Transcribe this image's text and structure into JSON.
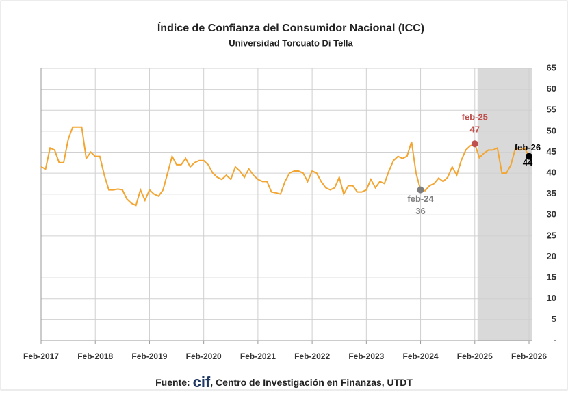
{
  "chart_data": {
    "type": "line",
    "title": "Índice de Confianza del Consumidor Nacional (ICC)",
    "subtitle": "Universidad Torcuato Di Tella",
    "categories": [
      "Feb-2017",
      null,
      null,
      null,
      null,
      null,
      null,
      null,
      null,
      null,
      null,
      null,
      "Feb-2018",
      null,
      null,
      null,
      null,
      null,
      null,
      null,
      null,
      null,
      null,
      null,
      "Feb-2019",
      null,
      null,
      null,
      null,
      null,
      null,
      null,
      null,
      null,
      null,
      null,
      "Feb-2020",
      null,
      null,
      null,
      null,
      null,
      null,
      null,
      null,
      null,
      null,
      null,
      "Feb-2021",
      null,
      null,
      null,
      null,
      null,
      null,
      null,
      null,
      null,
      null,
      null,
      "Feb-2022",
      null,
      null,
      null,
      null,
      null,
      null,
      null,
      null,
      null,
      null,
      null,
      "Feb-2023",
      null,
      null,
      null,
      null,
      null,
      null,
      null,
      null,
      null,
      null,
      null,
      "Feb-2024",
      null,
      null,
      null,
      null,
      null,
      null,
      null,
      null,
      null,
      null,
      null,
      "Feb-2025",
      null,
      null,
      null,
      null,
      null,
      null,
      null,
      null,
      null,
      null,
      null,
      "Feb-2026"
    ],
    "series": [
      {
        "name": "ICC",
        "color": "#f2a531",
        "values": [
          41.5,
          41,
          46,
          45.5,
          42.5,
          42.5,
          48,
          51,
          51,
          51,
          43.5,
          45,
          44,
          44,
          39.5,
          36,
          36,
          36.2,
          36,
          33.8,
          32.8,
          32.3,
          36,
          33.5,
          36,
          35,
          34.5,
          36,
          40,
          44,
          42,
          42,
          43.5,
          41.5,
          42.5,
          43,
          43,
          42,
          40,
          39,
          38.5,
          39.5,
          38.5,
          41.5,
          40.5,
          39,
          41,
          39.5,
          38.5,
          38,
          38,
          35.5,
          35.3,
          35,
          38,
          40,
          40.5,
          40.5,
          40,
          38,
          40.5,
          40,
          38,
          36.5,
          36,
          36.5,
          39,
          35,
          37,
          37,
          35.5,
          35.5,
          36,
          38.5,
          36.5,
          38,
          37.5,
          40.5,
          43,
          44,
          43.5,
          44,
          47.5,
          40,
          36,
          35.8,
          37,
          37.5,
          38.8,
          38,
          39,
          41.5,
          39.5,
          43,
          45.5,
          46.5,
          47,
          43.7,
          44.7,
          45.5,
          45.5,
          46,
          40,
          40,
          42,
          46,
          45.5,
          46,
          44
        ]
      }
    ],
    "ylim": [
      0,
      65
    ],
    "yticks": [
      {
        "value": 0,
        "label": "-"
      },
      5,
      10,
      15,
      20,
      25,
      30,
      35,
      40,
      45,
      50,
      55,
      60,
      65
    ],
    "grid": true,
    "annotations": [
      {
        "label": "feb-24",
        "value": 36,
        "color": "#7f7f7f"
      },
      {
        "label": "feb-25",
        "value": 47,
        "color": "#c0504d"
      },
      {
        "label": "feb-26",
        "value": 44,
        "color": "#000000"
      }
    ],
    "source_prefix": "Fuente:",
    "source_logo": "cif",
    "source_text": ", Centro de Investigación en Finanzas, UTDT"
  }
}
